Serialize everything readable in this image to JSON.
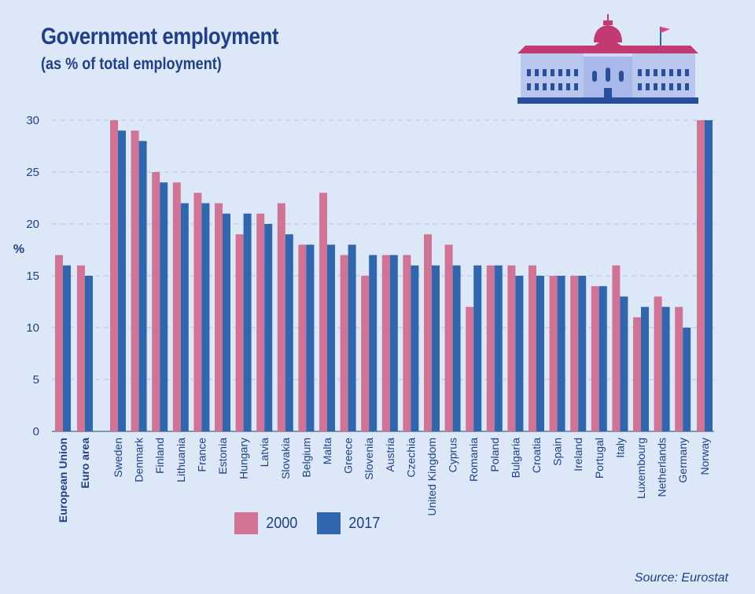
{
  "title": "Government employment",
  "subtitle": "(as % of total employment)",
  "source": "Source: Eurostat",
  "colors": {
    "s2000": "#d17394",
    "s2017": "#2f66ad",
    "background": "#dce8f7",
    "text": "#1f3f8a"
  },
  "legend": {
    "items": [
      {
        "label": "2000"
      },
      {
        "label": "2017"
      }
    ]
  },
  "chart_data": {
    "type": "bar",
    "ylabel": "%",
    "ylim": [
      0,
      30
    ],
    "yticks": [
      0,
      5,
      10,
      15,
      20,
      25,
      30
    ],
    "grid": "horizontal dashed",
    "legend_position": "bottom",
    "categories": [
      "European Union",
      "Euro area",
      "Sweden",
      "Denmark",
      "Finland",
      "Lithuania",
      "France",
      "Estonia",
      "Hungary",
      "Latvia",
      "Slovakia",
      "Belgium",
      "Malta",
      "Greece",
      "Slovenia",
      "Austria",
      "Czechia",
      "United Kingdom",
      "Cyprus",
      "Romania",
      "Poland",
      "Bulgaria",
      "Croatia",
      "Spain",
      "Ireland",
      "Portugal",
      "Italy",
      "Luxembourg",
      "Netherlands",
      "Germany",
      "Norway"
    ],
    "bold_categories": [
      "European Union",
      "Euro area"
    ],
    "series": [
      {
        "name": "2000",
        "values": [
          17,
          16,
          30,
          29,
          25,
          24,
          23,
          22,
          19,
          21,
          22,
          18,
          23,
          17,
          15,
          17,
          17,
          19,
          18,
          12,
          16,
          16,
          16,
          15,
          15,
          14,
          16,
          11,
          13,
          12,
          30
        ]
      },
      {
        "name": "2017",
        "values": [
          16,
          15,
          29,
          28,
          24,
          22,
          22,
          21,
          21,
          20,
          19,
          18,
          18,
          18,
          17,
          17,
          16,
          16,
          16,
          16,
          16,
          15,
          15,
          15,
          15,
          14,
          13,
          12,
          12,
          10,
          30
        ]
      }
    ]
  }
}
